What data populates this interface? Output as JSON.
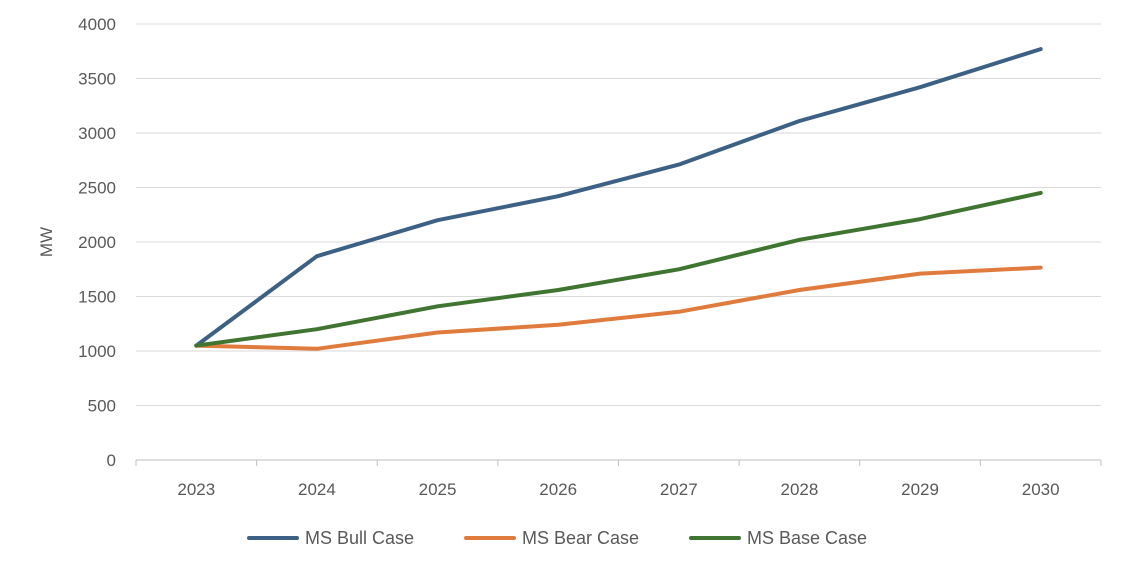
{
  "chart_data": {
    "type": "line",
    "title": "",
    "xlabel": "",
    "ylabel": "MW",
    "categories": [
      "2023",
      "2024",
      "2025",
      "2026",
      "2027",
      "2028",
      "2029",
      "2030"
    ],
    "ylim": [
      0,
      4000
    ],
    "yticks": [
      0,
      500,
      1000,
      1500,
      2000,
      2500,
      3000,
      3500,
      4000
    ],
    "grid": true,
    "legend_position": "bottom",
    "series": [
      {
        "name": "MS Bull Case",
        "color": "#3d6185",
        "values": [
          1050,
          1870,
          2200,
          2420,
          2710,
          3110,
          3420,
          3770
        ]
      },
      {
        "name": "MS Bear Case",
        "color": "#e07b3e",
        "values": [
          1050,
          1020,
          1170,
          1240,
          1360,
          1560,
          1710,
          1765
        ]
      },
      {
        "name": "MS Base Case",
        "color": "#3f7530",
        "values": [
          1050,
          1200,
          1410,
          1560,
          1750,
          2020,
          2210,
          2450
        ]
      }
    ]
  }
}
